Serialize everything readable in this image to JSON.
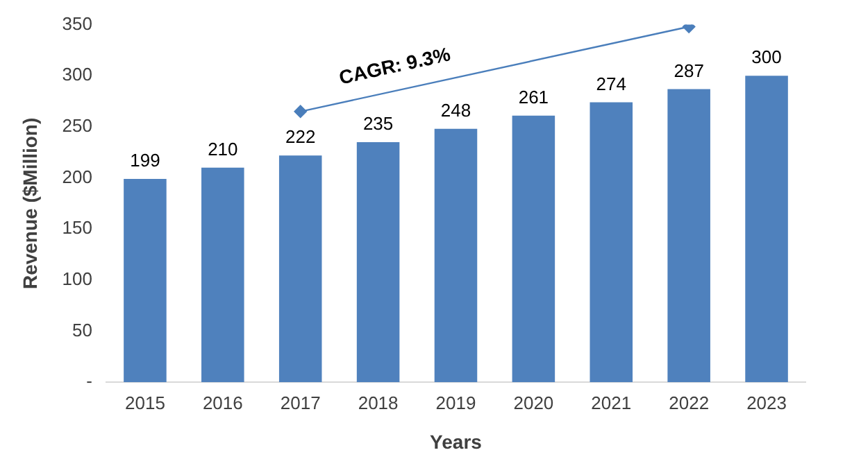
{
  "chart_data": {
    "type": "bar",
    "xlabel": "Years",
    "ylabel": "Revenue ($Million)",
    "categories": [
      "2015",
      "2016",
      "2017",
      "2018",
      "2019",
      "2020",
      "2021",
      "2022",
      "2023"
    ],
    "series": [
      {
        "color": "#4f81bd",
        "values": [
          199,
          210,
          222,
          235,
          248,
          261,
          274,
          287,
          300
        ],
        "value_labels": [
          "199",
          "210",
          "222",
          "235",
          "248",
          "261",
          "274",
          "287",
          "300"
        ]
      },
      {
        "type": "line",
        "color": "#4a7ebb",
        "marker": "diamond",
        "values": [
          null,
          null,
          265,
          null,
          null,
          null,
          null,
          348,
          null
        ]
      }
    ],
    "annotations": [
      "CAGR: 9.3%"
    ],
    "ylim": [
      0,
      350
    ],
    "yticks": [
      {
        "value": 0,
        "label": "-"
      },
      50,
      100,
      150,
      200,
      250,
      300,
      350
    ],
    "grid": false,
    "legend": false
  }
}
